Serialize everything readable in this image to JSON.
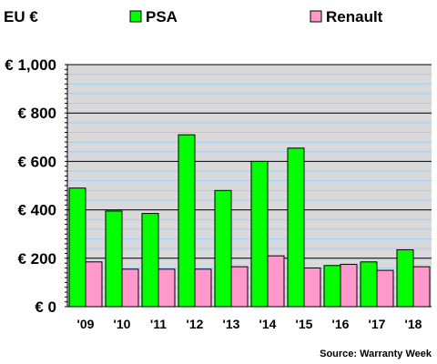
{
  "chart_data": {
    "type": "bar",
    "title": "",
    "unit_label": "EU €",
    "xlabel": "",
    "ylabel": "",
    "categories": [
      "'09",
      "'10",
      "'11",
      "'12",
      "'13",
      "'14",
      "'15",
      "'16",
      "'17",
      "'18"
    ],
    "series": [
      {
        "name": "PSA",
        "color": "#00ff00",
        "values": [
          490,
          395,
          385,
          710,
          480,
          600,
          655,
          170,
          185,
          235
        ]
      },
      {
        "name": "Renault",
        "color": "#ff99cc",
        "values": [
          185,
          155,
          155,
          155,
          165,
          210,
          160,
          175,
          150,
          165
        ]
      }
    ],
    "ylim": [
      0,
      1000
    ],
    "yticks": [
      0,
      200,
      400,
      600,
      800,
      1000
    ],
    "ytick_labels": [
      "€ 0",
      "€ 200",
      "€ 400",
      "€ 600",
      "€ 800",
      "€ 1,000"
    ],
    "minor_step": 40,
    "grid": true,
    "grid_color": "#99ccff",
    "plot_background": "#d9d9d9",
    "legend_position": "top",
    "source": "Source: Warranty Week"
  }
}
